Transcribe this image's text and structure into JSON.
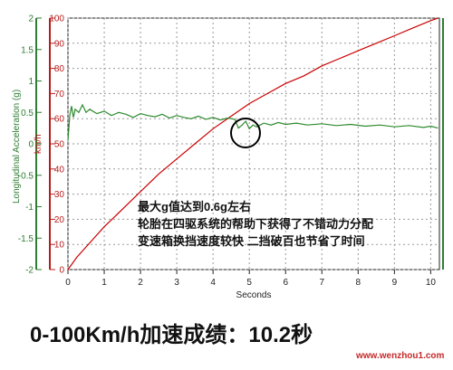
{
  "chart_data": {
    "type": "line",
    "x": {
      "label": "Seconds",
      "range": [
        0,
        10.2
      ],
      "ticks": [
        "0",
        "1",
        "2",
        "3",
        "4",
        "5",
        "6",
        "7",
        "8",
        "9",
        "10"
      ]
    },
    "y_left": {
      "label": "Longitudinal Acceleration (g)",
      "range": [
        -2,
        2
      ],
      "ticks": [
        "2",
        "1.5",
        "1",
        "0.5",
        "0",
        "-0.5",
        "-1",
        "-1.5",
        "-2"
      ]
    },
    "y_right": {
      "label": "km/h",
      "range": [
        0,
        100
      ],
      "ticks": [
        "100",
        "90",
        "80",
        "70",
        "60",
        "50",
        "40",
        "30",
        "20",
        "10",
        "0"
      ]
    },
    "grid": true,
    "series": [
      {
        "axis": "right",
        "color": "#cc0000",
        "x": [
          0,
          0.25,
          0.5,
          1,
          1.5,
          2,
          2.5,
          3,
          3.5,
          4,
          4.5,
          5,
          5.5,
          6,
          6.5,
          7,
          7.5,
          8,
          8.5,
          9,
          9.5,
          10,
          10.2
        ],
        "y": [
          0,
          5,
          9,
          17,
          24,
          31,
          38,
          44,
          50,
          56,
          61,
          66,
          70,
          74,
          77,
          81,
          84,
          87,
          90,
          93,
          96,
          99,
          100
        ]
      },
      {
        "axis": "left",
        "color": "#2e8b2e",
        "x": [
          0,
          0.05,
          0.1,
          0.15,
          0.2,
          0.3,
          0.4,
          0.5,
          0.6,
          0.8,
          1,
          1.2,
          1.4,
          1.6,
          1.8,
          2,
          2.2,
          2.4,
          2.6,
          2.8,
          3,
          3.2,
          3.4,
          3.6,
          3.8,
          4,
          4.2,
          4.4,
          4.6,
          4.7,
          4.8,
          4.9,
          5,
          5.1,
          5.2,
          5.4,
          5.6,
          5.8,
          6,
          6.3,
          6.6,
          7,
          7.4,
          7.8,
          8.2,
          8.6,
          9,
          9.4,
          9.8,
          10,
          10.2
        ],
        "y": [
          0.05,
          0.45,
          0.6,
          0.42,
          0.55,
          0.5,
          0.62,
          0.5,
          0.55,
          0.48,
          0.52,
          0.45,
          0.5,
          0.47,
          0.42,
          0.48,
          0.45,
          0.43,
          0.47,
          0.41,
          0.45,
          0.42,
          0.4,
          0.44,
          0.39,
          0.42,
          0.38,
          0.41,
          0.39,
          0.25,
          0.3,
          0.36,
          0.24,
          0.3,
          0.27,
          0.33,
          0.3,
          0.34,
          0.31,
          0.33,
          0.3,
          0.32,
          0.29,
          0.31,
          0.28,
          0.3,
          0.27,
          0.29,
          0.26,
          0.28,
          0.25
        ]
      }
    ]
  },
  "annotation": {
    "lines": [
      "最大g值达到0.6g左右",
      "轮胎在四驱系统的帮助下获得了不错动力分配",
      "变速箱换挡速度较快 二挡破百也节省了时间"
    ]
  },
  "caption": "0-100Km/h加速成绩：10.2秒",
  "watermark": "www.wenzhou1.com",
  "colors": {
    "speed_line": "#cc0000",
    "accel_line": "#2e8b2e",
    "left_axis": "#2e7d32",
    "right_axis": "#b71c1c",
    "grid": "#9a9a9a",
    "highlight_circle": "#000000"
  }
}
